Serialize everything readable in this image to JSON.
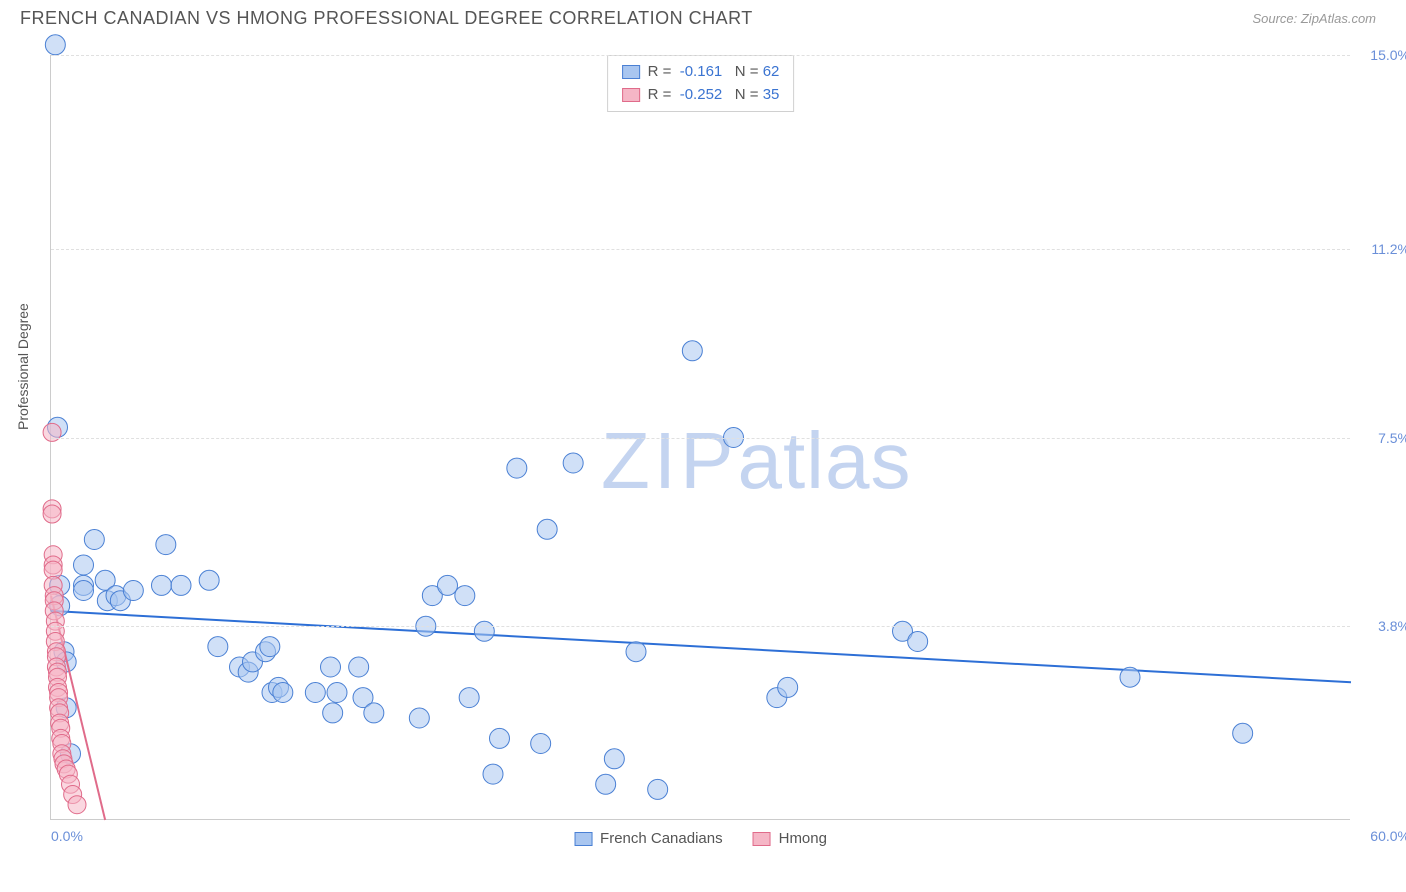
{
  "title": "FRENCH CANADIAN VS HMONG PROFESSIONAL DEGREE CORRELATION CHART",
  "source": "Source: ZipAtlas.com",
  "y_axis_label": "Professional Degree",
  "watermark_zip": "ZIP",
  "watermark_atlas": "atlas",
  "chart": {
    "type": "scatter",
    "xlim": [
      0,
      60
    ],
    "ylim": [
      0,
      15
    ],
    "x_ticks": [
      "0.0%",
      "60.0%"
    ],
    "y_ticks": [
      {
        "v": 3.8,
        "label": "3.8%"
      },
      {
        "v": 7.5,
        "label": "7.5%"
      },
      {
        "v": 11.2,
        "label": "11.2%"
      },
      {
        "v": 15.0,
        "label": "15.0%"
      }
    ],
    "grid_color": "#e0e0e0",
    "background_color": "#ffffff",
    "series": [
      {
        "name": "French Canadians",
        "R": "-0.161",
        "N": "62",
        "fill": "#a9c6f0",
        "stroke": "#4a80d4",
        "fill_opacity": 0.55,
        "marker_r": 10,
        "trend": {
          "x1": 0,
          "y1": 4.1,
          "x2": 60,
          "y2": 2.7,
          "color": "#2d6fd6",
          "width": 2
        },
        "points": [
          [
            0.2,
            15.2
          ],
          [
            0.3,
            7.7
          ],
          [
            0.4,
            4.6
          ],
          [
            0.4,
            4.2
          ],
          [
            0.6,
            3.3
          ],
          [
            0.7,
            3.1
          ],
          [
            0.7,
            2.2
          ],
          [
            0.9,
            1.3
          ],
          [
            1.5,
            5.0
          ],
          [
            1.5,
            4.6
          ],
          [
            1.5,
            4.5
          ],
          [
            2.0,
            5.5
          ],
          [
            2.5,
            4.7
          ],
          [
            2.6,
            4.3
          ],
          [
            3.0,
            4.4
          ],
          [
            3.2,
            4.3
          ],
          [
            3.8,
            4.5
          ],
          [
            5.1,
            4.6
          ],
          [
            5.3,
            5.4
          ],
          [
            6.0,
            4.6
          ],
          [
            7.3,
            4.7
          ],
          [
            7.7,
            3.4
          ],
          [
            8.7,
            3.0
          ],
          [
            9.1,
            2.9
          ],
          [
            9.3,
            3.1
          ],
          [
            9.9,
            3.3
          ],
          [
            10.1,
            3.4
          ],
          [
            10.2,
            2.5
          ],
          [
            10.5,
            2.6
          ],
          [
            10.7,
            2.5
          ],
          [
            12.2,
            2.5
          ],
          [
            12.9,
            3.0
          ],
          [
            13.0,
            2.1
          ],
          [
            13.2,
            2.5
          ],
          [
            14.2,
            3.0
          ],
          [
            14.4,
            2.4
          ],
          [
            14.9,
            2.1
          ],
          [
            17.0,
            2.0
          ],
          [
            17.3,
            3.8
          ],
          [
            17.6,
            4.4
          ],
          [
            18.3,
            4.6
          ],
          [
            19.1,
            4.4
          ],
          [
            19.3,
            2.4
          ],
          [
            20.0,
            3.7
          ],
          [
            20.4,
            0.9
          ],
          [
            20.7,
            1.6
          ],
          [
            21.5,
            6.9
          ],
          [
            22.6,
            1.5
          ],
          [
            22.9,
            5.7
          ],
          [
            24.1,
            7.0
          ],
          [
            25.6,
            0.7
          ],
          [
            26.0,
            1.2
          ],
          [
            27.0,
            3.3
          ],
          [
            28.0,
            0.6
          ],
          [
            29.6,
            9.2
          ],
          [
            31.5,
            7.5
          ],
          [
            33.5,
            2.4
          ],
          [
            34.0,
            2.6
          ],
          [
            39.3,
            3.7
          ],
          [
            40.0,
            3.5
          ],
          [
            49.8,
            2.8
          ],
          [
            55.0,
            1.7
          ]
        ]
      },
      {
        "name": "Hmong",
        "R": "-0.252",
        "N": "35",
        "fill": "#f5b6c6",
        "stroke": "#e06b8a",
        "fill_opacity": 0.55,
        "marker_r": 9,
        "trend": {
          "x1": 0,
          "y1": 4.4,
          "x2": 2.5,
          "y2": 0,
          "color": "#e06b8a",
          "width": 2
        },
        "points": [
          [
            0.05,
            7.6
          ],
          [
            0.05,
            6.1
          ],
          [
            0.05,
            6.0
          ],
          [
            0.1,
            5.2
          ],
          [
            0.1,
            5.0
          ],
          [
            0.1,
            4.9
          ],
          [
            0.1,
            4.6
          ],
          [
            0.15,
            4.4
          ],
          [
            0.15,
            4.3
          ],
          [
            0.15,
            4.1
          ],
          [
            0.2,
            3.9
          ],
          [
            0.2,
            3.7
          ],
          [
            0.2,
            3.5
          ],
          [
            0.25,
            3.3
          ],
          [
            0.25,
            3.2
          ],
          [
            0.25,
            3.0
          ],
          [
            0.3,
            2.9
          ],
          [
            0.3,
            2.8
          ],
          [
            0.3,
            2.6
          ],
          [
            0.35,
            2.5
          ],
          [
            0.35,
            2.4
          ],
          [
            0.35,
            2.2
          ],
          [
            0.4,
            2.1
          ],
          [
            0.4,
            1.9
          ],
          [
            0.45,
            1.8
          ],
          [
            0.45,
            1.6
          ],
          [
            0.5,
            1.5
          ],
          [
            0.5,
            1.3
          ],
          [
            0.55,
            1.2
          ],
          [
            0.6,
            1.1
          ],
          [
            0.7,
            1.0
          ],
          [
            0.8,
            0.9
          ],
          [
            0.9,
            0.7
          ],
          [
            1.0,
            0.5
          ],
          [
            1.2,
            0.3
          ]
        ]
      }
    ],
    "bottom_legend": [
      {
        "label": "French Canadians",
        "fill": "#a9c6f0",
        "stroke": "#4a80d4"
      },
      {
        "label": "Hmong",
        "fill": "#f5b6c6",
        "stroke": "#e06b8a"
      }
    ]
  }
}
